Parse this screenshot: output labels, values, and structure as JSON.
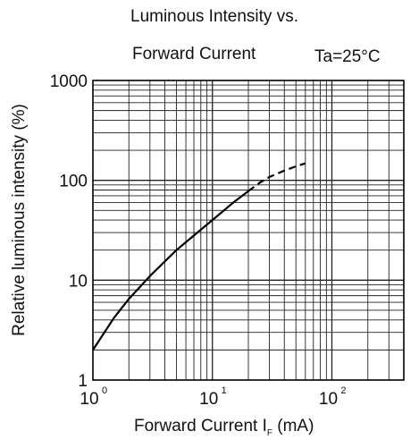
{
  "chart_data": {
    "type": "line",
    "title_lines": [
      "Luminous Intensity vs.",
      "Forward Current"
    ],
    "condition": "Ta=25°C",
    "ylabel": "Relative luminous intensity (%)",
    "xlabel": {
      "text": "Forward Current  I",
      "sub": "F",
      "unit": " (mA)"
    },
    "x_scale": "log",
    "y_scale": "log",
    "xlim": [
      1,
      400
    ],
    "ylim": [
      1,
      1000
    ],
    "grid": true,
    "x_ticks": [
      {
        "base": "10",
        "exp": "0",
        "value": 1
      },
      {
        "base": "10",
        "exp": "1",
        "value": 10
      },
      {
        "base": "10",
        "exp": "2",
        "value": 100
      }
    ],
    "y_ticks": [
      {
        "label": "1",
        "value": 1
      },
      {
        "label": "10",
        "value": 10
      },
      {
        "label": "100",
        "value": 100
      },
      {
        "label": "1000",
        "value": 1000
      }
    ],
    "series": [
      {
        "style": "solid",
        "x": [
          1,
          1.5,
          2,
          3,
          5,
          7,
          10,
          15,
          20
        ],
        "y": [
          2,
          4.2,
          6.5,
          11,
          20,
          28,
          40,
          60,
          78
        ]
      },
      {
        "style": "dashed",
        "x": [
          20,
          25,
          30,
          40,
          50,
          60
        ],
        "y": [
          78,
          95,
          108,
          125,
          138,
          148
        ]
      }
    ]
  }
}
